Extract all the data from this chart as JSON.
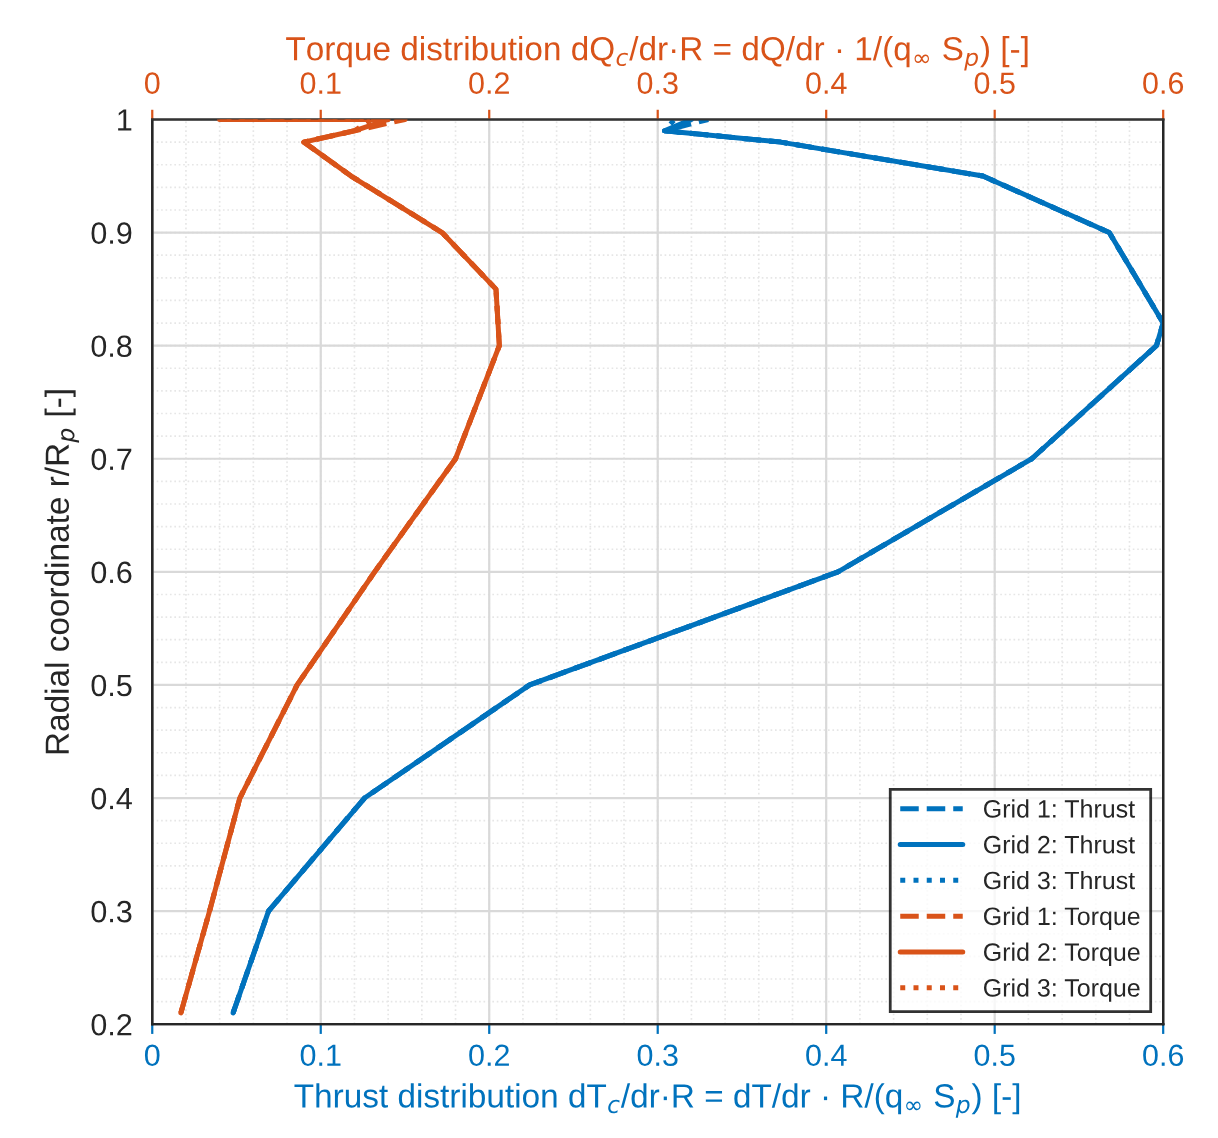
{
  "chart_data": {
    "type": "line",
    "xlabel": "Thrust distribution dT$_{c}$/dr·R = dT/dr · R/(q$_{∞}$ S$_{p}$) [-]",
    "x2label": "Torque distribution dQ$_{c}$/dr·R = dQ/dr · 1/(q$_{∞}$ S$_{p}$) [-]",
    "ylabel": "Radial coordinate r/R$_{p}$ [-]",
    "xlim": [
      0,
      0.6
    ],
    "xticks": [
      0,
      0.1,
      0.2,
      0.3,
      0.4,
      0.5,
      0.6
    ],
    "x2lim": [
      0,
      0.6
    ],
    "x2ticks": [
      0,
      0.1,
      0.2,
      0.3,
      0.4,
      0.5,
      0.6
    ],
    "ylim": [
      0.2,
      1
    ],
    "yticks": [
      0.2,
      0.3,
      0.4,
      0.5,
      0.6,
      0.7,
      0.8,
      0.9,
      1
    ],
    "grid": true,
    "legend": "bottom right",
    "series": [
      {
        "name": "Grid 1: Thrust",
        "color": "#0072bd",
        "line_style": "dashed",
        "x": [
          0.048,
          0.069,
          0.126,
          0.224,
          0.407,
          0.522,
          0.596,
          0.6,
          0.568,
          0.493,
          0.373,
          0.304,
          0.33
        ],
        "values": [
          0.21,
          0.3,
          0.4,
          0.5,
          0.6,
          0.7,
          0.8,
          0.82,
          0.9,
          0.95,
          0.98,
          0.99,
          1.0
        ]
      },
      {
        "name": "Grid 2: Thrust",
        "color": "#0072bd",
        "line_style": "solid",
        "x": [
          0.048,
          0.069,
          0.126,
          0.224,
          0.407,
          0.522,
          0.596,
          0.6,
          0.568,
          0.493,
          0.373,
          0.304,
          0.32
        ],
        "values": [
          0.21,
          0.3,
          0.4,
          0.5,
          0.6,
          0.7,
          0.8,
          0.82,
          0.9,
          0.95,
          0.98,
          0.99,
          1.0
        ]
      },
      {
        "name": "Grid 3: Thrust",
        "color": "#0072bd",
        "line_style": "dotted",
        "x": [
          0.048,
          0.069,
          0.126,
          0.224,
          0.407,
          0.522,
          0.596,
          0.6,
          0.568,
          0.493,
          0.373,
          0.304,
          0.31
        ],
        "values": [
          0.21,
          0.3,
          0.4,
          0.5,
          0.6,
          0.7,
          0.8,
          0.82,
          0.9,
          0.95,
          0.98,
          0.99,
          1.0
        ]
      },
      {
        "name": "Grid 1: Torque",
        "color": "#d95319",
        "line_style": "dashed",
        "axis": "x2",
        "x": [
          0.017,
          0.034,
          0.052,
          0.086,
          0.132,
          0.18,
          0.206,
          0.204,
          0.172,
          0.118,
          0.09,
          0.12,
          0.15,
          0.04
        ],
        "values": [
          0.21,
          0.3,
          0.4,
          0.5,
          0.6,
          0.7,
          0.8,
          0.85,
          0.9,
          0.95,
          0.98,
          0.99,
          1.0,
          1.0
        ]
      },
      {
        "name": "Grid 2: Torque",
        "color": "#d95319",
        "line_style": "solid",
        "axis": "x2",
        "x": [
          0.017,
          0.034,
          0.052,
          0.086,
          0.132,
          0.18,
          0.206,
          0.204,
          0.172,
          0.118,
          0.09,
          0.12,
          0.14,
          0.04
        ],
        "values": [
          0.21,
          0.3,
          0.4,
          0.5,
          0.6,
          0.7,
          0.8,
          0.85,
          0.9,
          0.95,
          0.98,
          0.99,
          1.0,
          1.0
        ]
      },
      {
        "name": "Grid 3: Torque",
        "color": "#d95319",
        "line_style": "dotted",
        "axis": "x2",
        "x": [
          0.017,
          0.034,
          0.052,
          0.086,
          0.132,
          0.18,
          0.206,
          0.204,
          0.172,
          0.118,
          0.09,
          0.12,
          0.13,
          0.04
        ],
        "values": [
          0.21,
          0.3,
          0.4,
          0.5,
          0.6,
          0.7,
          0.8,
          0.85,
          0.9,
          0.95,
          0.98,
          0.99,
          1.0,
          1.0
        ]
      }
    ]
  }
}
